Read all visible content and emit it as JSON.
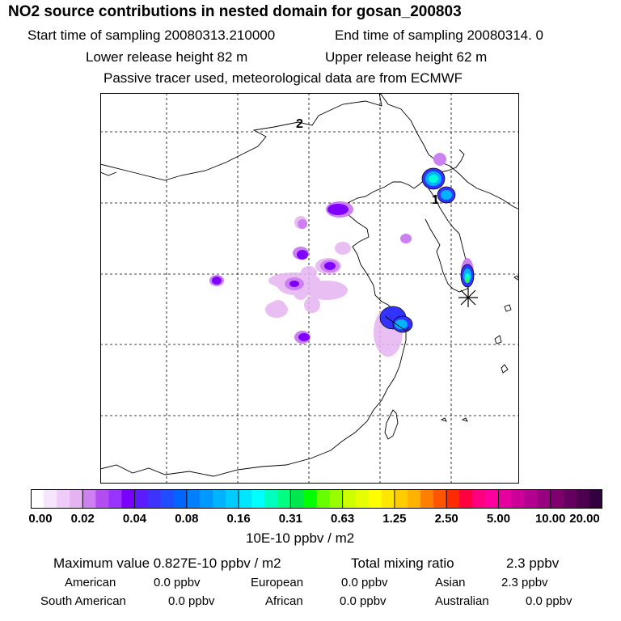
{
  "header": {
    "title": "NO2 source contributions in nested domain for gosan_200803",
    "start_time": "Start time of sampling 20080313.210000",
    "end_time": "End time of sampling 20080314.     0",
    "lower_height": "Lower release height   82 m",
    "upper_height": "Upper release height   62 m",
    "tracer_note": "Passive tracer used, meteorological data are from ECMWF"
  },
  "map": {
    "labels": [
      "2",
      "1"
    ],
    "site_marker": "asterisk-icon",
    "contour_colors": [
      "#e6b3f2",
      "#b366f2",
      "#8000ff",
      "#3333ff",
      "#00b3ff",
      "#00ffd9",
      "#33ff33"
    ]
  },
  "colorbar": {
    "ticks": [
      "0.00",
      "0.02",
      "0.04",
      "0.08",
      "0.16",
      "0.31",
      "0.63",
      "1.25",
      "2.50",
      "5.00",
      "10.00",
      "20.00"
    ],
    "colors": [
      "#ffffff",
      "#f6e6fb",
      "#eeccf7",
      "#e6b3f2",
      "#cc80f2",
      "#b34df2",
      "#9933ff",
      "#7a00ff",
      "#5c1aff",
      "#3d33ff",
      "#1f4dff",
      "#0066ff",
      "#0080ff",
      "#0099ff",
      "#00b3ff",
      "#00ccff",
      "#00e6ff",
      "#00ffff",
      "#00ffbf",
      "#00ff80",
      "#00e64d",
      "#00ff00",
      "#66ff00",
      "#99ff00",
      "#ccff00",
      "#e6ff00",
      "#ffff00",
      "#ffe600",
      "#ffcc00",
      "#ffb300",
      "#ff8000",
      "#ff5500",
      "#ff2b00",
      "#ff0040",
      "#ff0080",
      "#ff00a0",
      "#e6009e",
      "#cc0099",
      "#b30090",
      "#990080",
      "#800070",
      "#660060",
      "#4d0050",
      "#330040"
    ],
    "units": "10E-10 ppbv / m2"
  },
  "stats": {
    "max_value": "Maximum value  0.827E-10 ppbv / m2",
    "total_mixing": "Total mixing ratio",
    "total_value": "2.3 ppbv",
    "regions": [
      {
        "name": "American",
        "value": "0.0 ppbv"
      },
      {
        "name": "European",
        "value": "0.0 ppbv"
      },
      {
        "name": "Asian",
        "value": "2.3 ppbv"
      },
      {
        "name": "South American",
        "value": "0.0 ppbv"
      },
      {
        "name": "African",
        "value": "0.0 ppbv"
      },
      {
        "name": "Australian",
        "value": "0.0 ppbv"
      }
    ]
  }
}
